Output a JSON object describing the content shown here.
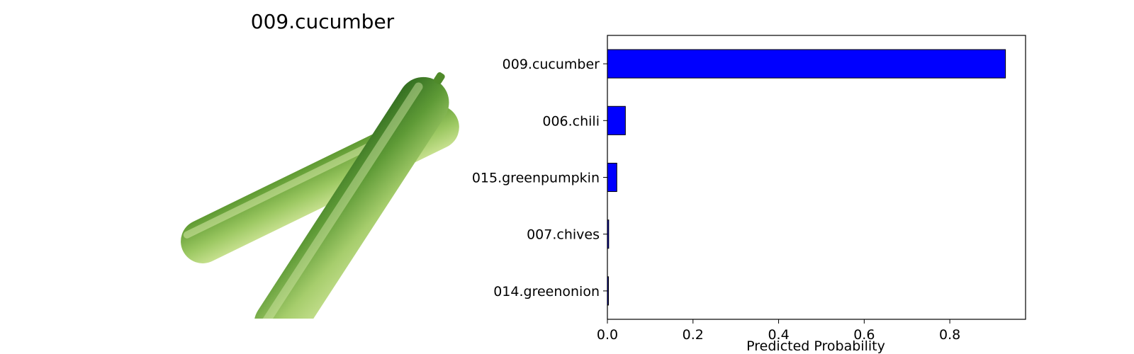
{
  "figure": {
    "image_title": "009.cucumber"
  },
  "photo": {
    "subject": "two cucumbers crossed on white background",
    "colors": {
      "light": "#b4d67a",
      "mid": "#6ea53c",
      "dark": "#3d7a25"
    }
  },
  "chart_data": {
    "type": "bar",
    "orientation": "horizontal",
    "categories": [
      "009.cucumber",
      "006.chili",
      "015.greenpumpkin",
      "007.chives",
      "014.greenonion"
    ],
    "values": [
      0.93,
      0.042,
      0.022,
      0.003,
      0.002
    ],
    "xlabel": "Predicted Probability",
    "ylabel": "",
    "xlim": [
      0,
      0.977
    ],
    "xticks": [
      0.0,
      0.2,
      0.4,
      0.6,
      0.8
    ],
    "xtick_labels": [
      "0.0",
      "0.2",
      "0.4",
      "0.6",
      "0.8"
    ],
    "bar_color": "#0000ff",
    "edge_color": "#000000",
    "grid": false
  }
}
